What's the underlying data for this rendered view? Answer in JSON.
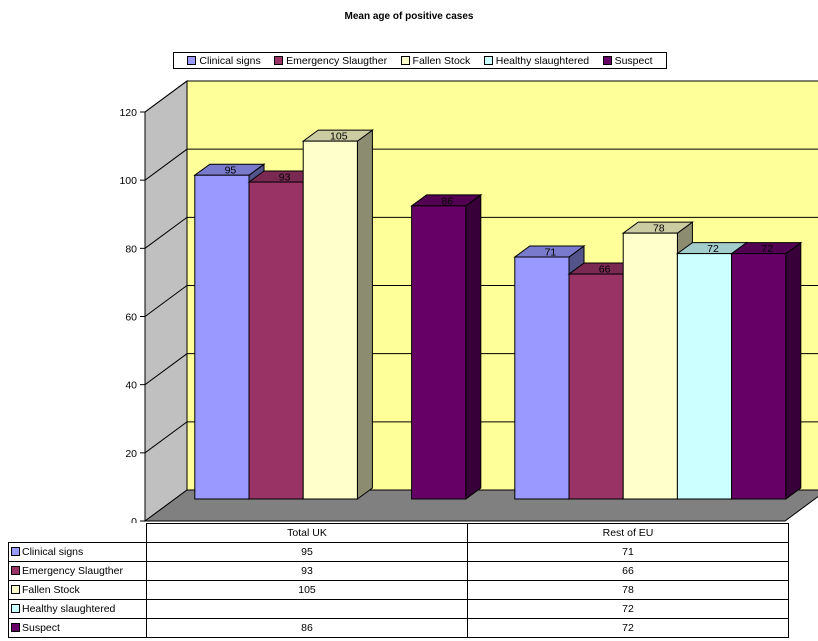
{
  "chart_data": {
    "type": "bar",
    "title": "Mean age of positive cases",
    "categories": [
      "Total UK",
      "Rest of EU"
    ],
    "series": [
      {
        "name": "Clinical signs",
        "color": "#9999ff",
        "values": [
          95,
          71
        ]
      },
      {
        "name": "Emergency Slaugther",
        "color": "#993366",
        "values": [
          93,
          66
        ]
      },
      {
        "name": "Fallen Stock",
        "color": "#ffffcc",
        "values": [
          105,
          78
        ]
      },
      {
        "name": "Healthy slaughtered",
        "color": "#ccffff",
        "values": [
          null,
          72
        ]
      },
      {
        "name": "Suspect",
        "color": "#660066",
        "values": [
          86,
          72
        ]
      }
    ],
    "yticks": [
      0,
      20,
      40,
      60,
      80,
      100,
      120
    ],
    "ylim": [
      0,
      120
    ],
    "grid": true,
    "legend_position": "top",
    "wall_color": "#ffff99",
    "floor_color": "#808080",
    "table_rows": [
      {
        "label": "Clinical signs",
        "cells": [
          "95",
          "71"
        ]
      },
      {
        "label": "Emergency Slaugther",
        "cells": [
          "93",
          "66"
        ]
      },
      {
        "label": "Fallen Stock",
        "cells": [
          "105",
          "78"
        ]
      },
      {
        "label": "Healthy slaughtered",
        "cells": [
          "",
          "72"
        ]
      },
      {
        "label": "Suspect",
        "cells": [
          "86",
          "72"
        ]
      }
    ]
  }
}
